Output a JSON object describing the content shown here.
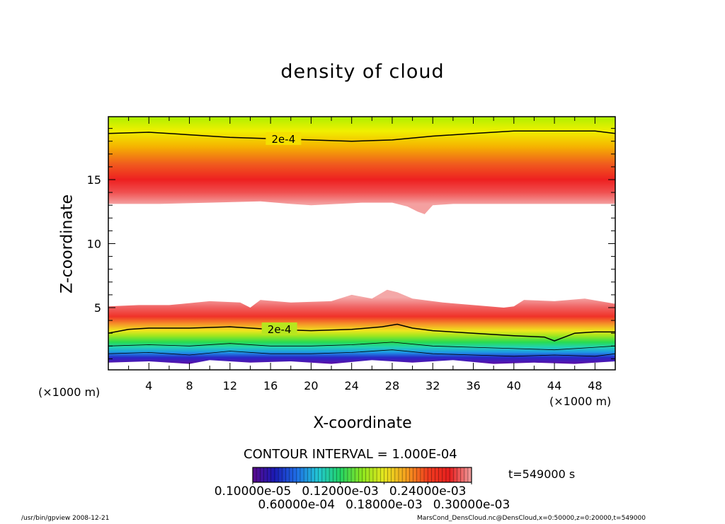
{
  "chart_data": {
    "type": "heatmap",
    "subtype": "filled contour",
    "title": "density of cloud",
    "xlabel": "X-coordinate",
    "ylabel": "Z-coordinate",
    "x_unit_left": "(×1000 m)",
    "x_unit_right": "(×1000 m)",
    "xlim": [
      0,
      50
    ],
    "ylim": [
      0,
      20
    ],
    "x_ticks": [
      4,
      8,
      12,
      16,
      20,
      24,
      28,
      32,
      36,
      40,
      44,
      48
    ],
    "y_ticks": [
      5,
      10,
      15
    ],
    "contour_interval": "CONTOUR INTERVAL = 1.000E-04",
    "time_label": "t=549000 s",
    "colorbar": {
      "colors": [
        "#5a0a8c",
        "#1a1ab4",
        "#1e6ee6",
        "#22c8d2",
        "#22d264",
        "#8ce61e",
        "#e6e61e",
        "#f5a01e",
        "#f03c1e",
        "#e61e1e",
        "#f0a0a0"
      ],
      "tick_labels": [
        "0.10000e-05",
        "0.60000e-04",
        "0.12000e-03",
        "0.18000e-03",
        "0.24000e-03",
        "0.30000e-03"
      ]
    },
    "upper_layer": {
      "lower_edge": {
        "x": [
          0,
          5,
          10,
          15,
          18,
          20,
          25,
          28,
          29.5,
          30.5,
          31.2,
          32,
          34,
          40,
          45,
          50
        ],
        "z": [
          13.1,
          13.1,
          13.2,
          13.3,
          13.1,
          13.0,
          13.2,
          13.2,
          12.9,
          12.5,
          12.3,
          13.0,
          13.1,
          13.1,
          13.1,
          13.1
        ]
      },
      "color_stops": [
        {
          "z": 20,
          "color": "#a8f000"
        },
        {
          "z": 18.8,
          "color": "#f0f000"
        },
        {
          "z": 17.6,
          "color": "#f5b400"
        },
        {
          "z": 16.2,
          "color": "#f05a1e"
        },
        {
          "z": 15,
          "color": "#ee2020"
        },
        {
          "z": 14,
          "color": "#f05050"
        },
        {
          "z": 13.1,
          "color": "#f4a0a0"
        }
      ]
    },
    "lower_layer": {
      "upper_edge": {
        "x": [
          0,
          3,
          6,
          10,
          13,
          14,
          15,
          18,
          22,
          24,
          26,
          27.5,
          28.5,
          30,
          33,
          36,
          39,
          40,
          41,
          44,
          47,
          50
        ],
        "z": [
          5.1,
          5.2,
          5.2,
          5.5,
          5.4,
          5.0,
          5.6,
          5.4,
          5.5,
          6.0,
          5.7,
          6.4,
          6.2,
          5.7,
          5.4,
          5.2,
          5.0,
          5.1,
          5.6,
          5.5,
          5.7,
          5.3
        ]
      },
      "lower_edge": {
        "x": [
          0,
          4,
          8,
          10,
          14,
          18,
          22,
          26,
          30,
          34,
          38,
          42,
          46,
          50
        ],
        "z": [
          0.7,
          0.8,
          0.6,
          0.9,
          0.7,
          0.8,
          0.6,
          0.9,
          0.7,
          0.9,
          0.6,
          0.7,
          0.6,
          0.8
        ]
      },
      "color_stops": [
        {
          "z": 0.5,
          "color": "#6a0aa0"
        },
        {
          "z": 1.1,
          "color": "#2828c8"
        },
        {
          "z": 1.5,
          "color": "#1e96e6"
        },
        {
          "z": 1.9,
          "color": "#22d2b4"
        },
        {
          "z": 2.3,
          "color": "#28dc50"
        },
        {
          "z": 2.8,
          "color": "#a0e61e"
        },
        {
          "z": 3.2,
          "color": "#f0e61e"
        },
        {
          "z": 3.7,
          "color": "#f59628"
        },
        {
          "z": 4.3,
          "color": "#f03228"
        },
        {
          "z": 5.0,
          "color": "#f06060"
        },
        {
          "z": 5.8,
          "color": "#f4a8a8"
        }
      ]
    },
    "contour_lines": [
      {
        "label": "2e-4",
        "label_x": 15.6,
        "x": [
          0,
          4,
          8,
          12,
          16,
          20,
          24,
          28,
          32,
          36,
          40,
          44,
          48,
          50
        ],
        "z": [
          18.6,
          18.7,
          18.5,
          18.3,
          18.2,
          18.1,
          18.0,
          18.1,
          18.4,
          18.6,
          18.8,
          18.8,
          18.8,
          18.6
        ]
      },
      {
        "label": "2e-4",
        "label_x": 15.2,
        "x": [
          0,
          2,
          4,
          8,
          12,
          16,
          20,
          24,
          27,
          28.5,
          30,
          32,
          36,
          40,
          43,
          44,
          46,
          48,
          50
        ],
        "z": [
          3.0,
          3.3,
          3.4,
          3.4,
          3.5,
          3.3,
          3.2,
          3.3,
          3.5,
          3.7,
          3.4,
          3.2,
          3.0,
          2.8,
          2.7,
          2.4,
          3.0,
          3.1,
          3.1
        ]
      },
      {
        "label": "",
        "label_x": null,
        "x": [
          0,
          4,
          8,
          12,
          16,
          20,
          24,
          28,
          32,
          36,
          40,
          44,
          48,
          50
        ],
        "z": [
          2.0,
          2.1,
          2.0,
          2.2,
          2.0,
          2.0,
          2.1,
          2.3,
          2.0,
          1.9,
          1.8,
          1.7,
          1.9,
          2.0
        ]
      },
      {
        "label": "",
        "label_x": null,
        "x": [
          0,
          4,
          8,
          12,
          16,
          20,
          24,
          28,
          32,
          36,
          40,
          44,
          48,
          50
        ],
        "z": [
          1.4,
          1.5,
          1.3,
          1.6,
          1.4,
          1.4,
          1.5,
          1.7,
          1.4,
          1.3,
          1.2,
          1.3,
          1.2,
          1.4
        ]
      }
    ]
  },
  "footer": {
    "left": "/usr/bin/gpview   2008-12-21",
    "right": "MarsCond_DensCloud.nc@DensCloud,x=0:50000,z=0:20000,t=549000"
  }
}
